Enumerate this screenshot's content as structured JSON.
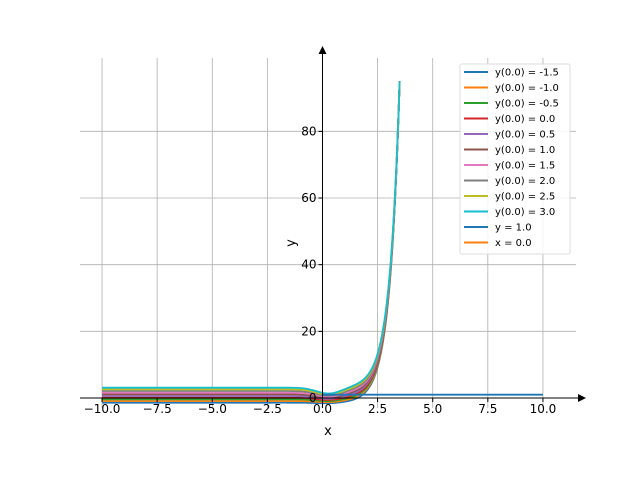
{
  "chart_data": {
    "type": "line",
    "xlabel": "x",
    "ylabel": "y",
    "xlim": [
      -11.0,
      11.5
    ],
    "ylim": [
      -3.0,
      102.0
    ],
    "grid": true,
    "legend_position": "top-right",
    "xticks": [
      -10.0,
      -7.5,
      -5.0,
      -2.5,
      0.0,
      2.5,
      5.0,
      7.5,
      10.0
    ],
    "xtick_labels": [
      "−10.0",
      "−7.5",
      "−5.0",
      "−2.5",
      "0.0",
      "2.5",
      "5.0",
      "7.5",
      "10.0"
    ],
    "yticks": [
      0,
      20,
      40,
      60,
      80
    ],
    "ytick_labels": [
      "0",
      "20",
      "40",
      "60",
      "80"
    ],
    "series": [
      {
        "name": "y(0.0) = -1.5",
        "color": "#1f77b4",
        "y0": -1.5
      },
      {
        "name": "y(0.0) = -1.0",
        "color": "#ff7f0e",
        "y0": -1.0
      },
      {
        "name": "y(0.0) = -0.5",
        "color": "#2ca02c",
        "y0": -0.5
      },
      {
        "name": "y(0.0) = 0.0",
        "color": "#d62728",
        "y0": 0.0
      },
      {
        "name": "y(0.0) = 0.5",
        "color": "#9467bd",
        "y0": 0.5
      },
      {
        "name": "y(0.0) = 1.0",
        "color": "#8c564b",
        "y0": 1.0
      },
      {
        "name": "y(0.0) = 1.5",
        "color": "#e377c2",
        "y0": 1.5
      },
      {
        "name": "y(0.0) = 2.0",
        "color": "#7f7f7f",
        "y0": 2.0
      },
      {
        "name": "y(0.0) = 2.5",
        "color": "#bcbd22",
        "y0": 2.5
      },
      {
        "name": "y(0.0) = 3.0",
        "color": "#17becf",
        "y0": 3.0
      },
      {
        "name": "y = 1.0",
        "color": "#1f77b4",
        "kind": "hline",
        "value": 1.0,
        "x": [
          0.0,
          10.0
        ]
      },
      {
        "name": "x = 0.0",
        "color": "#ff7f0e",
        "kind": "vline",
        "value": 0.0
      }
    ],
    "curve_shape": {
      "x_start": -10.0,
      "left_plateau_offset": 0.1,
      "min_near_x": 0.3,
      "end_x": 3.5,
      "end_y": 95
    }
  }
}
